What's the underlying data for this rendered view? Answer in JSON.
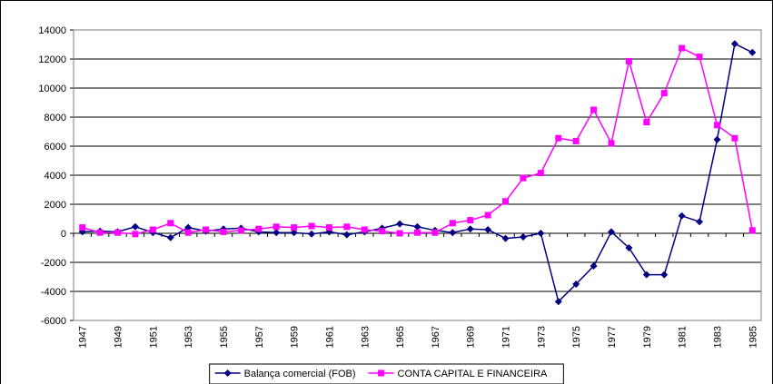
{
  "chart_data": {
    "type": "line",
    "categories": [
      "1947",
      null,
      "1949",
      null,
      "1951",
      null,
      "1953",
      null,
      "1955",
      null,
      "1957",
      null,
      "1959",
      null,
      "1961",
      null,
      "1963",
      null,
      "1965",
      null,
      "1967",
      null,
      "1969",
      null,
      "1971",
      null,
      "1973",
      null,
      "1975",
      null,
      "1977",
      null,
      "1979",
      null,
      "1981",
      null,
      "1983",
      null,
      "1985"
    ],
    "series": [
      {
        "name": "Balança comercial (FOB)",
        "color": "#000080",
        "marker": "diamond",
        "values": [
          100,
          150,
          100,
          450,
          50,
          -300,
          400,
          150,
          300,
          350,
          100,
          50,
          50,
          -50,
          100,
          -100,
          100,
          350,
          650,
          450,
          200,
          50,
          300,
          250,
          -350,
          -250,
          0,
          -4700,
          -3500,
          -2250,
          100,
          -1000,
          -2850,
          -2850,
          1200,
          800,
          6450,
          13050,
          12450
        ]
      },
      {
        "name": "CONTA CAPITAL E FINANCEIRA",
        "color": "#ff00ff",
        "marker": "square",
        "values": [
          400,
          50,
          50,
          -50,
          250,
          700,
          50,
          250,
          100,
          200,
          300,
          450,
          400,
          500,
          400,
          450,
          250,
          150,
          0,
          50,
          50,
          700,
          900,
          1250,
          2200,
          3800,
          4150,
          6550,
          6350,
          8500,
          6200,
          11850,
          7650,
          9650,
          12750,
          12150,
          7450,
          6550,
          200
        ]
      }
    ],
    "ylim": [
      -6000,
      14000
    ],
    "yticks": [
      -6000,
      -4000,
      -2000,
      0,
      2000,
      4000,
      6000,
      8000,
      10000,
      12000,
      14000
    ],
    "grid": true,
    "legend": "bottom"
  }
}
